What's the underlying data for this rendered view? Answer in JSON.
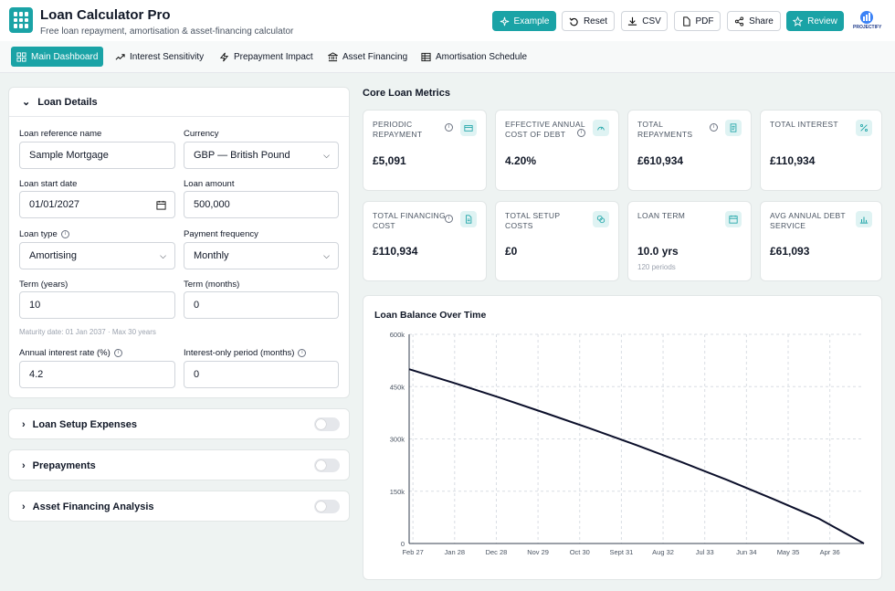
{
  "app": {
    "title": "Loan Calculator Pro",
    "subtitle": "Free loan repayment, amortisation & asset-financing calculator",
    "brand_text": "PROJECTIFY"
  },
  "header_buttons": [
    "Example",
    "Reset",
    "CSV",
    "PDF",
    "Share",
    "Review"
  ],
  "tabs": [
    "Main Dashboard",
    "Interest Sensitivity",
    "Prepayment Impact",
    "Asset Financing",
    "Amortisation Schedule"
  ],
  "loan_details": {
    "title": "Loan Details",
    "ref_label": "Loan reference name",
    "ref_value": "Sample Mortgage",
    "currency_label": "Currency",
    "currency_value": "GBP — British Pound",
    "start_label": "Loan start date",
    "start_value": "01/01/2027",
    "amount_label": "Loan amount",
    "amount_value": "500,000",
    "type_label": "Loan type",
    "type_value": "Amortising",
    "freq_label": "Payment frequency",
    "freq_value": "Monthly",
    "term_years_label": "Term (years)",
    "term_years_value": "10",
    "term_months_label": "Term (months)",
    "term_months_value": "0",
    "maturity_note": "Maturity date: 01 Jan 2037 · Max 30 years",
    "rate_label": "Annual interest rate (%)",
    "rate_value": "4.2",
    "io_label": "Interest-only period (months)",
    "io_value": "0"
  },
  "collapsed_sections": [
    "Loan Setup Expenses",
    "Prepayments",
    "Asset Financing Analysis"
  ],
  "metrics_title": "Core Loan Metrics",
  "metrics": [
    {
      "label": "PERIODIC REPAYMENT",
      "value": "£5,091",
      "sub": ""
    },
    {
      "label": "EFFECTIVE ANNUAL COST OF DEBT",
      "value": "4.20%",
      "sub": ""
    },
    {
      "label": "TOTAL REPAYMENTS",
      "value": "£610,934",
      "sub": ""
    },
    {
      "label": "TOTAL INTEREST",
      "value": "£110,934",
      "sub": ""
    },
    {
      "label": "TOTAL FINANCING COST",
      "value": "£110,934",
      "sub": ""
    },
    {
      "label": "TOTAL SETUP COSTS",
      "value": "£0",
      "sub": ""
    },
    {
      "label": "LOAN TERM",
      "value": "10.0 yrs",
      "sub": "120 periods"
    },
    {
      "label": "AVG ANNUAL DEBT SERVICE",
      "value": "£61,093",
      "sub": ""
    }
  ],
  "colors": {
    "accent": "#1aa3a6",
    "line": "#0b0f2a"
  },
  "chart_data": {
    "type": "line",
    "title": "Loan Balance Over Time",
    "x_ticks": [
      "Feb 27",
      "Jan 28",
      "Dec 28",
      "Nov 29",
      "Oct 30",
      "Sept 31",
      "Aug 32",
      "Jul 33",
      "Jun 34",
      "May 35",
      "Apr 36"
    ],
    "y_ticks": [
      "0",
      "150k",
      "300k",
      "450k",
      "600k"
    ],
    "ylim": [
      0,
      600000
    ],
    "xlim": [
      0,
      120
    ],
    "tick_positions": [
      1,
      12,
      23,
      34,
      45,
      56,
      67,
      78,
      89,
      100,
      111
    ],
    "series": [
      {
        "x": [
          0,
          12,
          24,
          36,
          48,
          60,
          72,
          84,
          96,
          108,
          120
        ],
        "values": [
          500000,
          460000,
          418000,
          374000,
          329000,
          282000,
          233000,
          182000,
          128000,
          72000,
          0
        ]
      }
    ],
    "grid": true
  }
}
